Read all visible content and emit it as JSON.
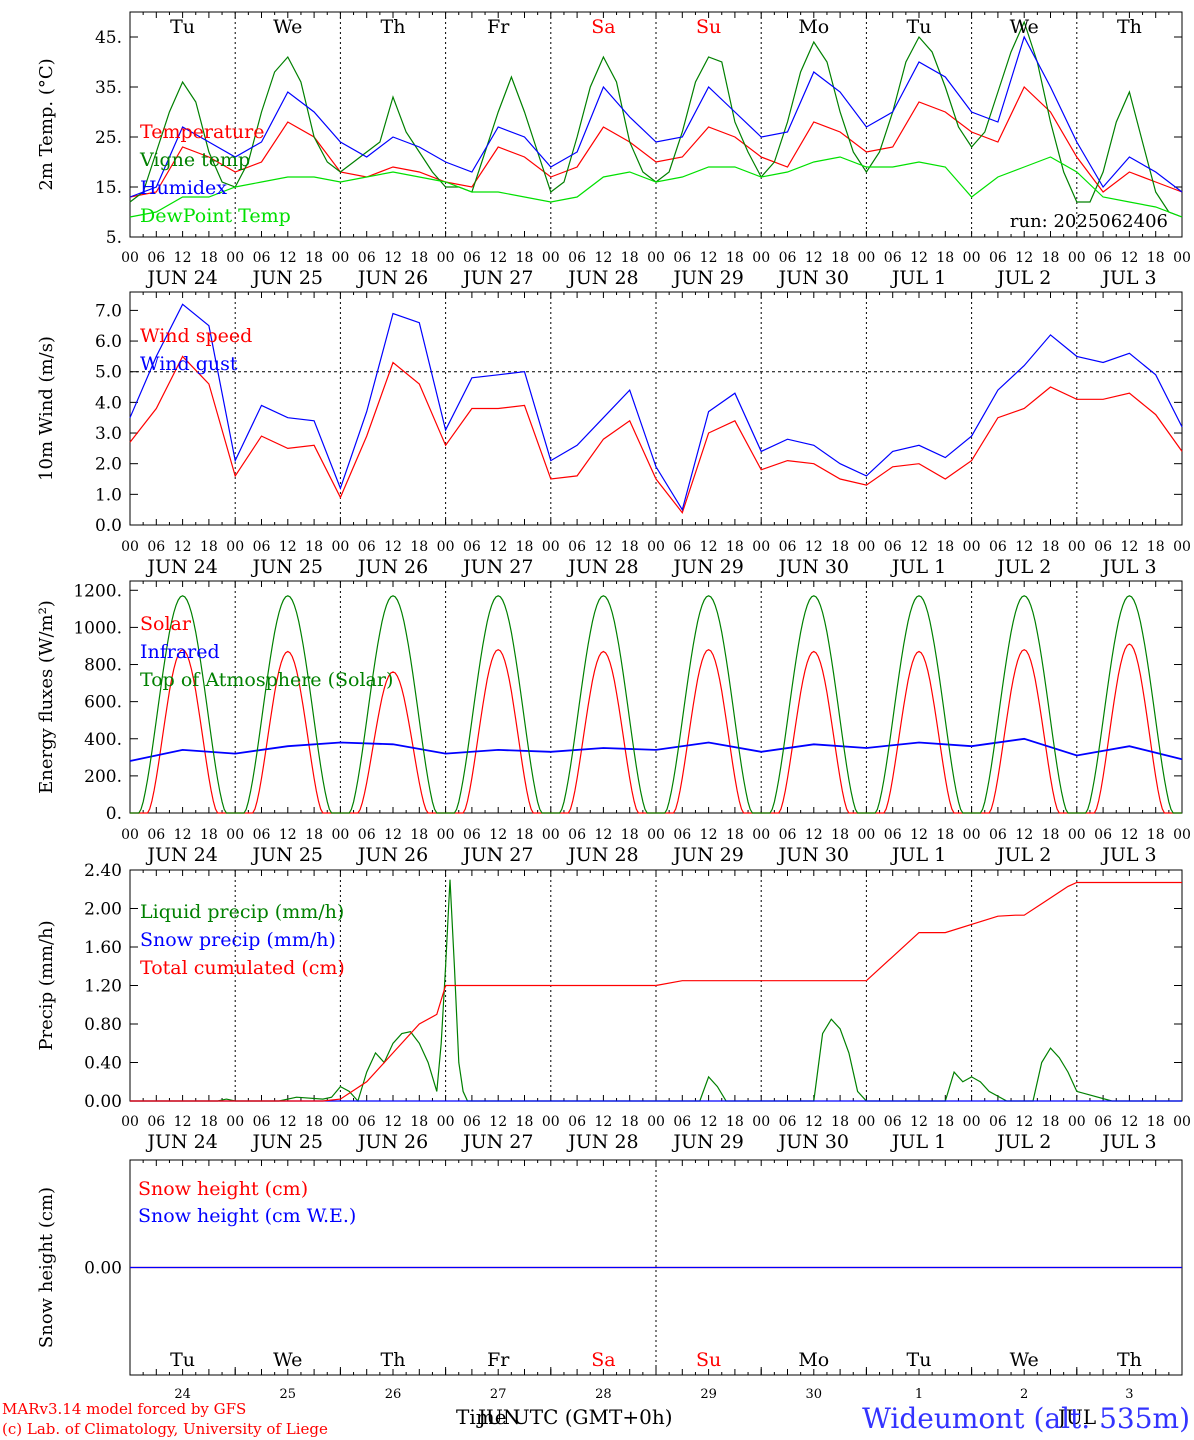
{
  "run_label": "run: 2025062406",
  "days": [
    "Tu",
    "We",
    "Th",
    "Fr",
    "Sa",
    "Su",
    "Mo",
    "Tu",
    "We",
    "Th"
  ],
  "weekend_indices": [
    4,
    5
  ],
  "dates": [
    "JUN 24",
    "JUN 25",
    "JUN 26",
    "JUN 27",
    "JUN 28",
    "JUN 29",
    "JUN 30",
    "JUL  1",
    "JUL  2",
    "JUL  3"
  ],
  "hour_ticks": [
    "00",
    "06",
    "12",
    "18"
  ],
  "end_tick": "00",
  "bottom_days": [
    "24",
    "25",
    "26",
    "27",
    "28",
    "29",
    "30",
    "1",
    "2",
    "3"
  ],
  "footer": {
    "model": "MARv3.14 model forced by GFS",
    "lab": "(c) Lab. of Climatology, University of Liege",
    "time_label": "Time UTC (GMT+0h)",
    "month_overlap": "JUN",
    "month_overlap2": "JUL",
    "station": "Wideumont (alt. 535m)"
  },
  "colors": {
    "red": "#ff0000",
    "green": "#008000",
    "blue": "#0000ff",
    "lightgreen": "#00e000"
  },
  "chart_data": [
    {
      "type": "line",
      "ylabel": "2m Temp. (°C)",
      "ylim": [
        5,
        50
      ],
      "yticks": [
        "5.",
        "15.",
        "25.",
        "35.",
        "45."
      ],
      "ytick_values": [
        5,
        15,
        25,
        35,
        45
      ],
      "x_unit": "hours since 2025-06-24 00 UTC",
      "series": [
        {
          "name": "Temperature",
          "color": "#ff0000",
          "x": [
            0,
            6,
            12,
            18,
            24,
            30,
            36,
            42,
            48,
            54,
            60,
            66,
            72,
            78,
            84,
            90,
            96,
            102,
            108,
            114,
            120,
            126,
            132,
            138,
            144,
            150,
            156,
            162,
            168,
            174,
            180,
            186,
            192,
            198,
            204,
            210,
            216,
            222,
            228,
            234,
            240
          ],
          "values": [
            13,
            14,
            23,
            21,
            18,
            20,
            28,
            25,
            18,
            17,
            19,
            18,
            16,
            15,
            23,
            21,
            17,
            19,
            27,
            24,
            20,
            21,
            27,
            25,
            21,
            19,
            28,
            26,
            22,
            23,
            32,
            30,
            26,
            24,
            35,
            30,
            21,
            14,
            18,
            16,
            14
          ]
        },
        {
          "name": "Vigne temp",
          "color": "#008000",
          "x": [
            0,
            3,
            6,
            9,
            12,
            15,
            18,
            21,
            24,
            27,
            30,
            33,
            36,
            39,
            42,
            45,
            48,
            51,
            54,
            57,
            60,
            63,
            66,
            69,
            72,
            75,
            78,
            81,
            84,
            87,
            90,
            93,
            96,
            99,
            102,
            105,
            108,
            111,
            114,
            117,
            120,
            123,
            126,
            129,
            132,
            135,
            138,
            141,
            144,
            147,
            150,
            153,
            156,
            159,
            162,
            165,
            168,
            171,
            174,
            177,
            180,
            183,
            186,
            189,
            192,
            195,
            198,
            201,
            204,
            207,
            210,
            213,
            216,
            219,
            222,
            225,
            228,
            231,
            234,
            237,
            240
          ],
          "values": [
            12,
            14,
            22,
            30,
            36,
            32,
            22,
            16,
            15,
            20,
            30,
            38,
            41,
            36,
            25,
            20,
            18,
            20,
            22,
            24,
            33,
            26,
            22,
            18,
            15,
            15,
            14,
            22,
            30,
            37,
            30,
            22,
            14,
            16,
            25,
            35,
            41,
            36,
            24,
            18,
            16,
            18,
            26,
            36,
            41,
            40,
            28,
            22,
            17,
            20,
            28,
            38,
            44,
            40,
            30,
            22,
            18,
            22,
            30,
            40,
            45,
            42,
            35,
            27,
            23,
            26,
            34,
            42,
            48,
            40,
            28,
            18,
            12,
            12,
            18,
            28,
            34,
            24,
            14,
            10,
            9
          ]
        },
        {
          "name": "Humidex",
          "color": "#0000ff",
          "x": [
            0,
            6,
            12,
            18,
            24,
            30,
            36,
            42,
            48,
            54,
            60,
            66,
            72,
            78,
            84,
            90,
            96,
            102,
            108,
            114,
            120,
            126,
            132,
            138,
            144,
            150,
            156,
            162,
            168,
            174,
            180,
            186,
            192,
            198,
            204,
            210,
            216,
            222,
            228,
            234,
            240
          ],
          "values": [
            13,
            15,
            27,
            24,
            21,
            24,
            34,
            30,
            24,
            21,
            25,
            23,
            20,
            18,
            27,
            25,
            19,
            22,
            35,
            29,
            24,
            25,
            35,
            30,
            25,
            26,
            38,
            34,
            27,
            30,
            40,
            37,
            30,
            28,
            45,
            35,
            24,
            15,
            21,
            18,
            14
          ]
        },
        {
          "name": "DewPoint Temp",
          "color": "#00e000",
          "x": [
            0,
            6,
            12,
            18,
            24,
            30,
            36,
            42,
            48,
            54,
            60,
            66,
            72,
            78,
            84,
            90,
            96,
            102,
            108,
            114,
            120,
            126,
            132,
            138,
            144,
            150,
            156,
            162,
            168,
            174,
            180,
            186,
            192,
            198,
            204,
            210,
            216,
            222,
            228,
            234,
            240
          ],
          "values": [
            9,
            10,
            13,
            13,
            15,
            16,
            17,
            17,
            16,
            17,
            18,
            17,
            16,
            14,
            14,
            13,
            12,
            13,
            17,
            18,
            16,
            17,
            19,
            19,
            17,
            18,
            20,
            21,
            19,
            19,
            20,
            19,
            13,
            17,
            19,
            21,
            18,
            13,
            12,
            11,
            9
          ]
        }
      ]
    },
    {
      "type": "line",
      "ylabel": "10m Wind (m/s)",
      "ylim": [
        0,
        7.6
      ],
      "yticks": [
        "0.0",
        "1.0",
        "2.0",
        "3.0",
        "4.0",
        "5.0",
        "6.0",
        "7.0"
      ],
      "ytick_values": [
        0,
        1,
        2,
        3,
        4,
        5,
        6,
        7
      ],
      "reference_line": 5,
      "x_unit": "hours since 2025-06-24 00 UTC",
      "series": [
        {
          "name": "Wind speed",
          "color": "#ff0000",
          "x": [
            0,
            6,
            12,
            18,
            24,
            30,
            36,
            42,
            48,
            54,
            60,
            66,
            72,
            78,
            84,
            90,
            96,
            102,
            108,
            114,
            120,
            126,
            132,
            138,
            144,
            150,
            156,
            162,
            168,
            174,
            180,
            186,
            192,
            198,
            204,
            210,
            216,
            222,
            228,
            234,
            240
          ],
          "values": [
            2.7,
            3.8,
            5.5,
            4.6,
            1.6,
            2.9,
            2.5,
            2.6,
            0.9,
            2.9,
            5.3,
            4.6,
            2.6,
            3.8,
            3.8,
            3.9,
            1.5,
            1.6,
            2.8,
            3.4,
            1.5,
            0.4,
            3.0,
            3.4,
            1.8,
            2.1,
            2.0,
            1.5,
            1.3,
            1.9,
            2.0,
            1.5,
            2.1,
            3.5,
            3.8,
            4.5,
            4.1,
            4.1,
            4.3,
            3.6,
            2.4
          ]
        },
        {
          "name": "Wind gust",
          "color": "#0000ff",
          "x": [
            0,
            6,
            12,
            18,
            24,
            30,
            36,
            42,
            48,
            54,
            60,
            66,
            72,
            78,
            84,
            90,
            96,
            102,
            108,
            114,
            120,
            126,
            132,
            138,
            144,
            150,
            156,
            162,
            168,
            174,
            180,
            186,
            192,
            198,
            204,
            210,
            216,
            222,
            228,
            234,
            240
          ],
          "values": [
            3.5,
            5.5,
            7.2,
            6.5,
            2.1,
            3.9,
            3.5,
            3.4,
            1.2,
            3.7,
            6.9,
            6.6,
            3.1,
            4.8,
            4.9,
            5.0,
            2.1,
            2.6,
            3.5,
            4.4,
            1.9,
            0.5,
            3.7,
            4.3,
            2.4,
            2.8,
            2.6,
            2.0,
            1.6,
            2.4,
            2.6,
            2.2,
            2.9,
            4.4,
            5.2,
            6.2,
            5.5,
            5.3,
            5.6,
            4.9,
            3.2
          ]
        }
      ]
    },
    {
      "type": "line",
      "ylabel": "Energy fluxes (W/m²)",
      "ylim": [
        0,
        1250
      ],
      "yticks": [
        "0.",
        "200.",
        "400.",
        "600.",
        "800.",
        "1000.",
        "1200."
      ],
      "ytick_values": [
        0,
        200,
        400,
        600,
        800,
        1000,
        1200
      ],
      "x_unit": "hours since 2025-06-24 00 UTC",
      "series": [
        {
          "name": "Solar",
          "color": "#ff0000",
          "daily_peak": [
            880,
            870,
            760,
            880,
            870,
            880,
            870,
            870,
            880,
            910
          ],
          "day_start_hour": 4,
          "day_end_hour": 20
        },
        {
          "name": "Infrared",
          "color": "#0000ff",
          "x": [
            0,
            12,
            24,
            36,
            48,
            60,
            72,
            84,
            96,
            108,
            120,
            132,
            144,
            156,
            168,
            180,
            192,
            204,
            216,
            228,
            240
          ],
          "values": [
            280,
            340,
            320,
            360,
            380,
            370,
            320,
            340,
            330,
            350,
            340,
            380,
            330,
            370,
            350,
            380,
            360,
            400,
            310,
            360,
            290
          ]
        },
        {
          "name": "Top of Atmosphere (Solar)",
          "color": "#008000",
          "daily_peak": [
            1170,
            1170,
            1170,
            1170,
            1170,
            1170,
            1170,
            1170,
            1170,
            1170
          ],
          "day_start_hour": 2,
          "day_end_hour": 22
        }
      ]
    },
    {
      "type": "line",
      "ylabel": "Precip (mm/h)",
      "ylim": [
        0,
        2.4
      ],
      "yticks": [
        "0.00",
        "0.40",
        "0.80",
        "1.20",
        "1.60",
        "2.00",
        "2.40"
      ],
      "ytick_values": [
        0,
        0.4,
        0.8,
        1.2,
        1.6,
        2.0,
        2.4
      ],
      "x_unit": "hours since 2025-06-24 00 UTC",
      "series": [
        {
          "name": "Liquid precip (mm/h)",
          "color": "#008000",
          "x": [
            0,
            20,
            22,
            24,
            30,
            34,
            38,
            44,
            46,
            48,
            50,
            52,
            54,
            56,
            58,
            60,
            62,
            64,
            66,
            68,
            70,
            71,
            72,
            73,
            74,
            75,
            76,
            77,
            78,
            120,
            130,
            132,
            134,
            136,
            144,
            156,
            158,
            160,
            162,
            164,
            166,
            168,
            180,
            186,
            188,
            190,
            192,
            194,
            196,
            200,
            204,
            206,
            208,
            210,
            212,
            214,
            216,
            224,
            240
          ],
          "values": [
            0,
            0,
            0.02,
            0,
            0,
            0,
            0.04,
            0.02,
            0.04,
            0.15,
            0.1,
            0,
            0.3,
            0.5,
            0.4,
            0.6,
            0.7,
            0.72,
            0.6,
            0.4,
            0.1,
            0.6,
            1.4,
            2.3,
            1.4,
            0.4,
            0.1,
            0,
            0,
            0,
            0,
            0.25,
            0.15,
            0,
            0,
            0,
            0.7,
            0.85,
            0.75,
            0.5,
            0.1,
            0,
            0,
            0,
            0.3,
            0.2,
            0.25,
            0.2,
            0.1,
            0,
            0,
            0,
            0.4,
            0.55,
            0.45,
            0.3,
            0.1,
            0,
            0
          ]
        },
        {
          "name": "Snow precip (mm/h)",
          "color": "#0000ff",
          "x": [
            0,
            240
          ],
          "values": [
            0,
            0
          ]
        },
        {
          "name": "Total cumulated (cm)",
          "color": "#ff0000",
          "x": [
            0,
            44,
            48,
            54,
            60,
            66,
            70,
            72,
            120,
            126,
            168,
            180,
            186,
            198,
            202,
            204,
            208,
            214,
            216,
            240
          ],
          "values": [
            0,
            0,
            0.02,
            0.2,
            0.5,
            0.8,
            0.9,
            1.2,
            1.2,
            1.25,
            1.25,
            1.75,
            1.75,
            1.92,
            1.93,
            1.93,
            2.05,
            2.23,
            2.27,
            2.27
          ]
        }
      ]
    },
    {
      "type": "line",
      "ylabel": "Snow height (cm)",
      "ylim": [
        -1,
        1
      ],
      "yticks": [
        "0.00"
      ],
      "ytick_values": [
        0
      ],
      "x_unit": "hours since 2025-06-24 00 UTC",
      "series": [
        {
          "name": "Snow height (cm)",
          "color": "#ff0000",
          "x": [
            0,
            240
          ],
          "values": [
            0,
            0
          ]
        },
        {
          "name": "Snow height (cm W.E.)",
          "color": "#0000ff",
          "x": [
            0,
            240
          ],
          "values": [
            0,
            0
          ]
        }
      ]
    }
  ]
}
